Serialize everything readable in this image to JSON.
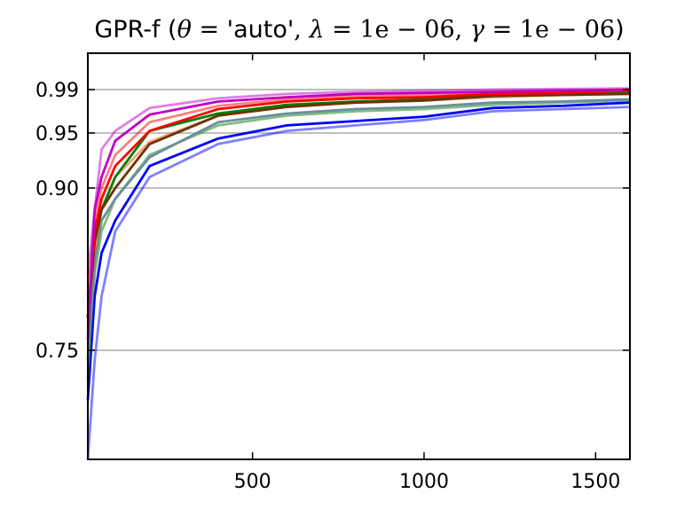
{
  "chart_data": {
    "type": "line",
    "title": {
      "prefix": "GPR-f (",
      "theta": "θ",
      "eq1": " = ",
      "theta_value": "'auto'",
      "sep1": ", ",
      "lambda": "λ",
      "eq2": " = ",
      "lambda_value": "1e − 06",
      "sep2": ", ",
      "gamma": "γ",
      "eq3": " = ",
      "gamma_value": "1e − 06",
      "suffix": ")"
    },
    "xlabel": "",
    "ylabel": "",
    "xlim": [
      20,
      1600
    ],
    "ylim_display": [
      0.64,
      1.05
    ],
    "y_scale": "nonlinear (compressed toward 1)",
    "x_ticks": [
      {
        "value": 500,
        "label": "500"
      },
      {
        "value": 1000,
        "label": "1000"
      },
      {
        "value": 1500,
        "label": "1500"
      }
    ],
    "y_ticks": [
      {
        "value": 0.75,
        "label": "0.75"
      },
      {
        "value": 0.9,
        "label": "0.90"
      },
      {
        "value": 0.95,
        "label": "0.95"
      },
      {
        "value": 0.99,
        "label": "0.99"
      }
    ],
    "grid": "horizontal only",
    "legend": "none",
    "x": [
      20,
      40,
      60,
      100,
      200,
      400,
      600,
      800,
      1000,
      1200,
      1400,
      1600
    ],
    "series": [
      {
        "color": "#0000ff",
        "opacity": 0.5,
        "values": [
          0.62,
          0.74,
          0.8,
          0.86,
          0.91,
          0.94,
          0.952,
          0.957,
          0.962,
          0.97,
          0.972,
          0.974
        ]
      },
      {
        "color": "#0000ff",
        "opacity": 1.0,
        "values": [
          0.7,
          0.8,
          0.84,
          0.87,
          0.92,
          0.945,
          0.957,
          0.961,
          0.965,
          0.973,
          0.975,
          0.978
        ]
      },
      {
        "color": "#008000",
        "opacity": 0.5,
        "values": [
          0.72,
          0.82,
          0.86,
          0.89,
          0.93,
          0.957,
          0.966,
          0.97,
          0.972,
          0.976,
          0.978,
          0.98
        ]
      },
      {
        "color": "#6b8e9e",
        "opacity": 1.0,
        "values": [
          0.74,
          0.83,
          0.87,
          0.89,
          0.928,
          0.96,
          0.968,
          0.972,
          0.974,
          0.978,
          0.979,
          0.981
        ]
      },
      {
        "color": "#ff4500",
        "opacity": 0.5,
        "values": [
          0.78,
          0.84,
          0.88,
          0.91,
          0.942,
          0.966,
          0.974,
          0.978,
          0.98,
          0.983,
          0.985,
          0.986
        ]
      },
      {
        "color": "#008000",
        "opacity": 1.0,
        "values": [
          0.78,
          0.85,
          0.88,
          0.91,
          0.952,
          0.968,
          0.976,
          0.979,
          0.981,
          0.985,
          0.986,
          0.987
        ]
      },
      {
        "color": "#6b3300",
        "opacity": 1.0,
        "values": [
          0.78,
          0.85,
          0.88,
          0.9,
          0.94,
          0.966,
          0.974,
          0.978,
          0.98,
          0.984,
          0.985,
          0.986
        ]
      },
      {
        "color": "#ff0000",
        "opacity": 1.0,
        "values": [
          0.78,
          0.86,
          0.89,
          0.92,
          0.952,
          0.972,
          0.979,
          0.982,
          0.983,
          0.986,
          0.987,
          0.989
        ]
      },
      {
        "color": "#ff0000",
        "opacity": 0.5,
        "values": [
          0.8,
          0.87,
          0.9,
          0.93,
          0.96,
          0.975,
          0.981,
          0.984,
          0.985,
          0.987,
          0.988,
          0.99
        ]
      },
      {
        "color": "#c000c0",
        "opacity": 1.0,
        "values": [
          0.76,
          0.88,
          0.91,
          0.943,
          0.967,
          0.979,
          0.983,
          0.986,
          0.987,
          0.988,
          0.989,
          0.99
        ]
      },
      {
        "color": "#c000c0",
        "opacity": 0.5,
        "values": [
          0.82,
          0.88,
          0.935,
          0.952,
          0.973,
          0.982,
          0.986,
          0.988,
          0.989,
          0.99,
          0.991,
          0.992
        ]
      }
    ]
  }
}
